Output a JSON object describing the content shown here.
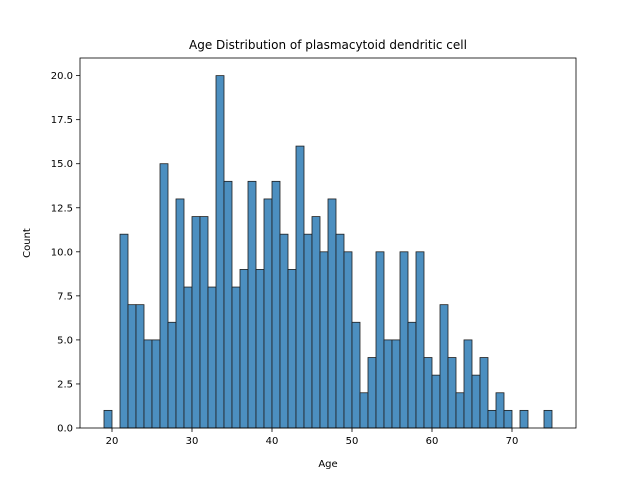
{
  "chart_data": {
    "type": "bar",
    "title": "Age Distribution of plasmacytoid dendritic cell",
    "xlabel": "Age",
    "ylabel": "Count",
    "xlim": [
      16,
      78
    ],
    "ylim": [
      0,
      21
    ],
    "xticks": [
      20,
      30,
      40,
      50,
      60,
      70
    ],
    "yticks": [
      0.0,
      2.5,
      5.0,
      7.5,
      10.0,
      12.5,
      15.0,
      17.5,
      20.0
    ],
    "bin_width": 1,
    "bin_starts": [
      19,
      20,
      21,
      22,
      23,
      24,
      25,
      26,
      27,
      28,
      29,
      30,
      31,
      32,
      33,
      34,
      35,
      36,
      37,
      38,
      39,
      40,
      41,
      42,
      43,
      44,
      45,
      46,
      47,
      48,
      49,
      50,
      51,
      52,
      53,
      54,
      55,
      56,
      57,
      58,
      59,
      60,
      61,
      62,
      63,
      64,
      65,
      66,
      67,
      68,
      69,
      70,
      71,
      72,
      73,
      74
    ],
    "counts": [
      1,
      0,
      11,
      7,
      7,
      5,
      5,
      15,
      6,
      13,
      8,
      12,
      12,
      8,
      20,
      14,
      8,
      9,
      14,
      9,
      13,
      14,
      11,
      9,
      16,
      11,
      12,
      10,
      13,
      11,
      10,
      6,
      2,
      4,
      10,
      5,
      5,
      10,
      6,
      10,
      4,
      3,
      7,
      4,
      2,
      5,
      3,
      4,
      1,
      2,
      1,
      0,
      1,
      0,
      0,
      1
    ],
    "grid": false,
    "bar_color": "#4c8fc0"
  }
}
